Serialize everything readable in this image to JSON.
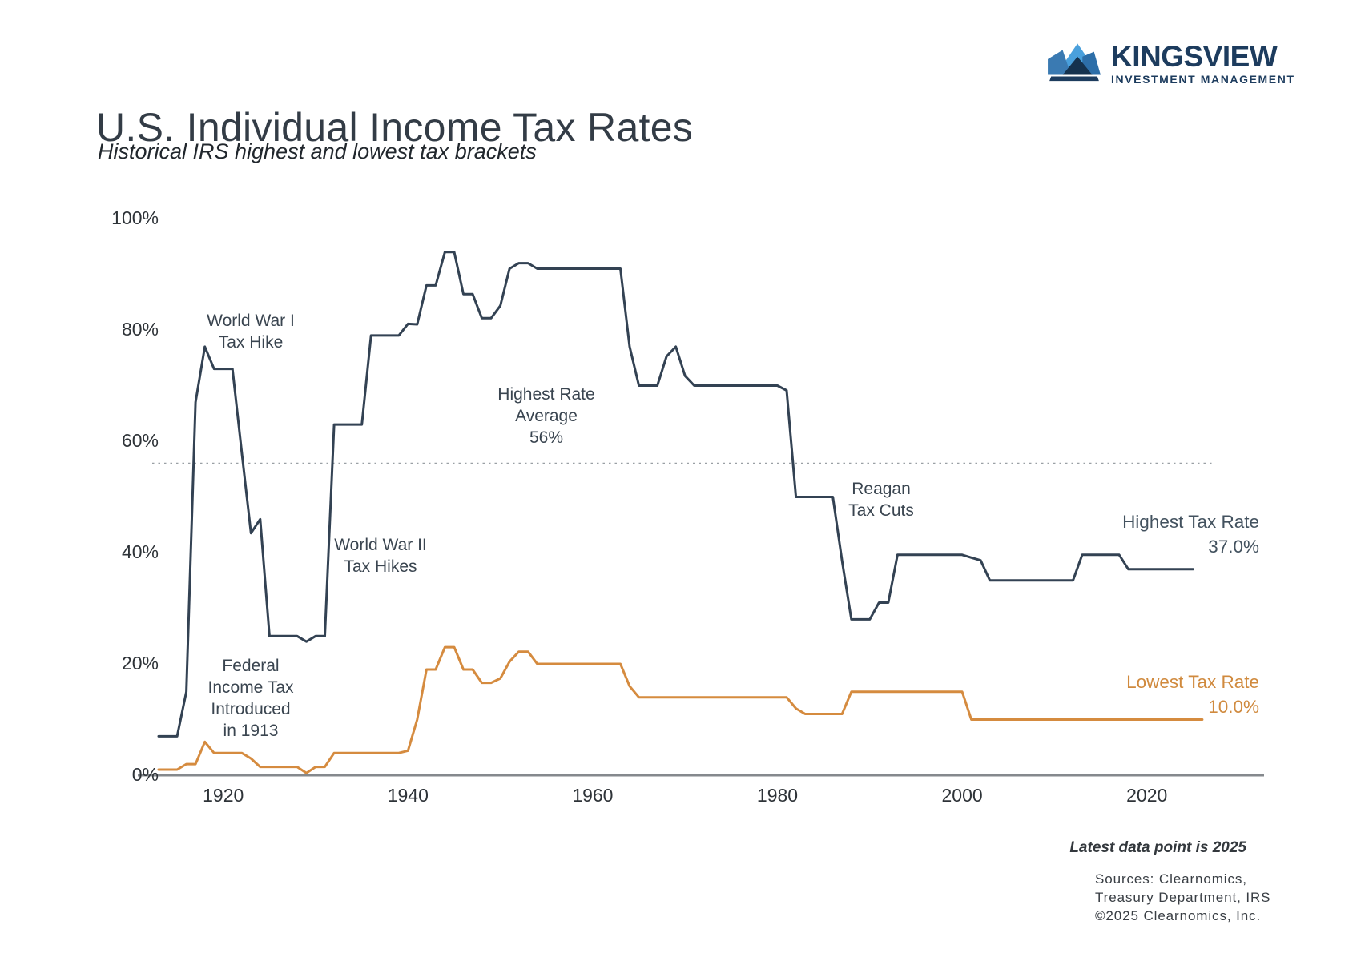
{
  "header": {
    "title": "U.S. Individual Income Tax Rates",
    "subtitle": "Historical IRS highest and lowest tax brackets"
  },
  "brand": {
    "name": "KINGSVIEW",
    "tagline": "INVESTMENT MANAGEMENT",
    "navy": "#1d3c5e",
    "light_blue": "#4aa0dc",
    "steel_blue": "#3a7ab2",
    "mid_blue": "#2d6ea8",
    "deep_navy": "#15324e"
  },
  "annotations": {
    "ww1": {
      "lines": [
        "World War I",
        "Tax Hike"
      ]
    },
    "avg": {
      "lines": [
        "Highest Rate",
        "Average",
        "56%"
      ]
    },
    "ww2": {
      "lines": [
        "World War II",
        "Tax Hikes"
      ]
    },
    "reagan": {
      "lines": [
        "Reagan",
        "Tax Cuts"
      ]
    },
    "fedtax": {
      "lines": [
        "Federal",
        "Income Tax",
        "Introduced",
        "in 1913"
      ]
    },
    "highest_label": {
      "lines": [
        "Highest Tax Rate",
        "37.0%"
      ]
    },
    "lowest_label": {
      "lines": [
        "Lowest Tax Rate",
        "10.0%"
      ]
    }
  },
  "footer": {
    "note": "Latest data point is 2025",
    "sources": [
      "Sources: Clearnomics,",
      "Treasury Department, IRS",
      "©2025 Clearnomics, Inc."
    ]
  },
  "chart_data": {
    "type": "line",
    "title": "U.S. Individual Income Tax Rates",
    "subtitle": "Historical IRS highest and lowest tax brackets",
    "x_start_year": 1913,
    "x_end_year": 2025,
    "ylim": [
      0,
      100
    ],
    "grid": false,
    "axis_color": "#85898d",
    "dotted_line_color": "#9aa0a5",
    "y_ticks": [
      {
        "value": 0,
        "label": "0%"
      },
      {
        "value": 20,
        "label": "20%"
      },
      {
        "value": 40,
        "label": "40%"
      },
      {
        "value": 60,
        "label": "60%"
      },
      {
        "value": 80,
        "label": "80%"
      },
      {
        "value": 100,
        "label": "100%"
      }
    ],
    "x_ticks": [
      1920,
      1940,
      1960,
      1980,
      2000,
      2020
    ],
    "average_line": {
      "value": 56,
      "label": "Highest Rate Average 56%"
    },
    "series": [
      {
        "name": "Highest Tax Rate",
        "latest_value_label": "37.0%",
        "color": "#334253",
        "values": [
          7,
          7,
          7,
          15,
          67,
          77,
          73,
          73,
          73,
          58,
          43.5,
          46,
          25,
          25,
          25,
          25,
          24,
          25,
          25,
          63,
          63,
          63,
          63,
          79,
          79,
          79,
          79,
          81.1,
          81,
          88,
          88,
          94,
          94,
          86.45,
          86.45,
          82.13,
          82.13,
          84.36,
          91,
          92,
          92,
          91,
          91,
          91,
          91,
          91,
          91,
          91,
          91,
          91,
          91,
          77,
          70,
          70,
          70,
          75.25,
          77,
          71.75,
          70,
          70,
          70,
          70,
          70,
          70,
          70,
          70,
          70,
          70,
          69.13,
          50,
          50,
          50,
          50,
          50,
          38.5,
          28,
          28,
          28,
          31,
          31,
          39.6,
          39.6,
          39.6,
          39.6,
          39.6,
          39.6,
          39.6,
          39.6,
          39.1,
          38.6,
          35,
          35,
          35,
          35,
          35,
          35,
          35,
          35,
          35,
          35,
          39.6,
          39.6,
          39.6,
          39.6,
          39.6,
          37,
          37,
          37,
          37,
          37,
          37,
          37,
          37
        ]
      },
      {
        "name": "Lowest Tax Rate",
        "latest_value_label": "10.0%",
        "color": "#d58b3f",
        "values": [
          1,
          1,
          1,
          2,
          2,
          6,
          4,
          4,
          4,
          4,
          3,
          1.5,
          1.5,
          1.5,
          1.5,
          1.5,
          0.4,
          1.5,
          1.5,
          4,
          4,
          4,
          4,
          4,
          4,
          4,
          4,
          4.4,
          10,
          19,
          19,
          23,
          23,
          19,
          19,
          16.6,
          16.6,
          17.4,
          20.4,
          22.2,
          22.2,
          20,
          20,
          20,
          20,
          20,
          20,
          20,
          20,
          20,
          20,
          16,
          14,
          14,
          14,
          14,
          14,
          14,
          14,
          14,
          14,
          14,
          14,
          14,
          14,
          14,
          14,
          14,
          14,
          12,
          11,
          11,
          11,
          11,
          11,
          15,
          15,
          15,
          15,
          15,
          15,
          15,
          15,
          15,
          15,
          15,
          15,
          15,
          10,
          10,
          10,
          10,
          10,
          10,
          10,
          10,
          10,
          10,
          10,
          10,
          10,
          10,
          10,
          10,
          10,
          10,
          10,
          10,
          10,
          10,
          10,
          10,
          10,
          10
        ]
      }
    ]
  }
}
